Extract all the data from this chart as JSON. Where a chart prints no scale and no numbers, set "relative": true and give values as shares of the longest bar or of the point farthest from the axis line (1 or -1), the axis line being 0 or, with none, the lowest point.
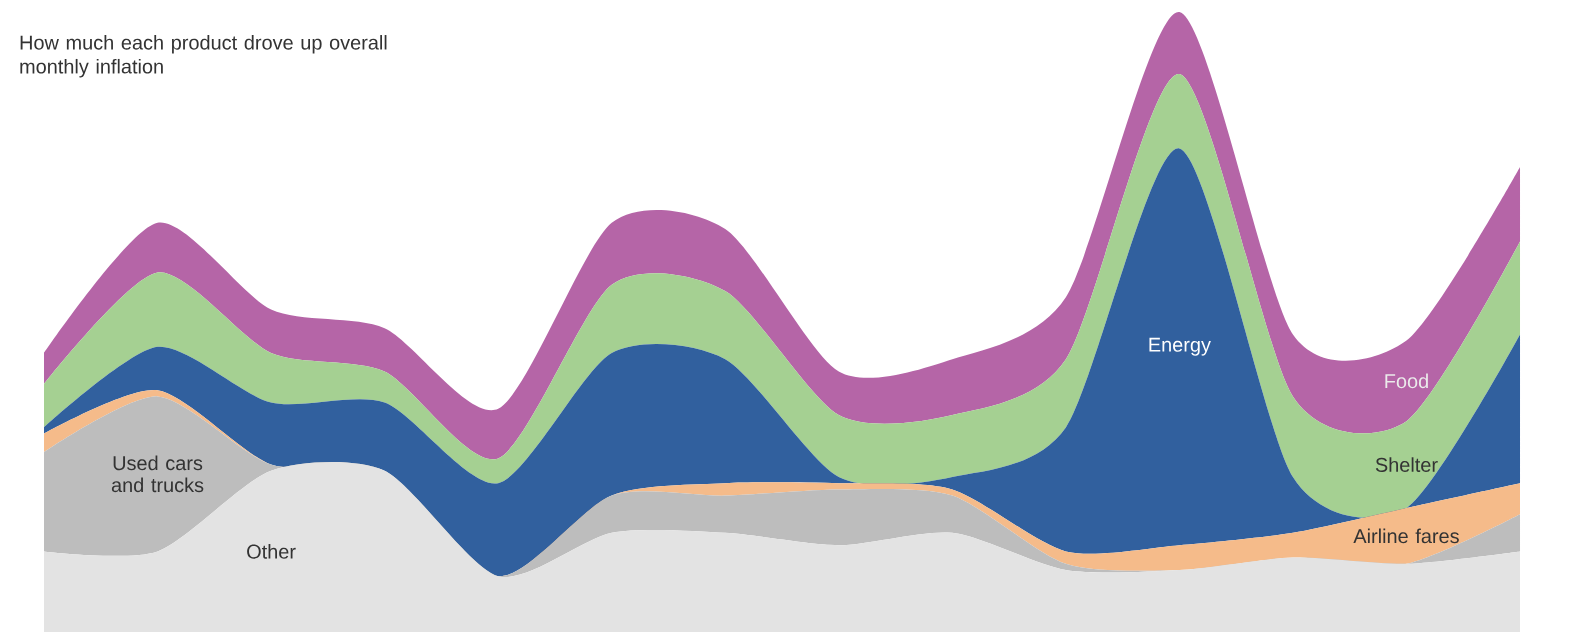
{
  "chart_data": {
    "type": "area",
    "title": "How much each product drove up overall monthly inflation",
    "relative": true,
    "stacked": true,
    "categories": [
      null,
      null,
      null,
      null,
      null,
      null,
      null,
      null,
      null,
      null,
      null,
      null,
      null,
      null
    ],
    "series": [
      {
        "name": "Other",
        "color": "#e3e3e3",
        "values": [
          0.13,
          0.13,
          0.26,
          0.26,
          0.09,
          0.16,
          0.16,
          0.14,
          0.16,
          0.1,
          0.1,
          0.12,
          0.11,
          0.13
        ]
      },
      {
        "name": "Used cars and trucks",
        "color": "#bdbdbd",
        "values": [
          0.16,
          0.25,
          0.01,
          0,
          0,
          0.06,
          0.06,
          0.09,
          0.06,
          0.01,
          0,
          0,
          0,
          0.06
        ]
      },
      {
        "name": "Airline fares",
        "color": "#f5bb8a",
        "values": [
          0.03,
          0.01,
          0,
          0,
          0,
          0,
          0.02,
          0.01,
          0.01,
          0.02,
          0.04,
          0.04,
          0.09,
          0.05
        ]
      },
      {
        "name": "Energy",
        "color": "#31609e",
        "values": [
          0.01,
          0.07,
          0.1,
          0.11,
          0.15,
          0.23,
          0.2,
          0.01,
          0.02,
          0.2,
          0.64,
          0.09,
          0,
          0.24
        ]
      },
      {
        "name": "Shelter",
        "color": "#a5d092",
        "values": [
          0.07,
          0.12,
          0.08,
          0.05,
          0.04,
          0.11,
          0.11,
          0.1,
          0.1,
          0.11,
          0.12,
          0.13,
          0.14,
          0.15
        ]
      },
      {
        "name": "Food",
        "color": "#b565a7",
        "values": [
          0.05,
          0.08,
          0.07,
          0.07,
          0.08,
          0.1,
          0.1,
          0.07,
          0.09,
          0.1,
          0.1,
          0.1,
          0.13,
          0.12
        ]
      }
    ]
  }
}
